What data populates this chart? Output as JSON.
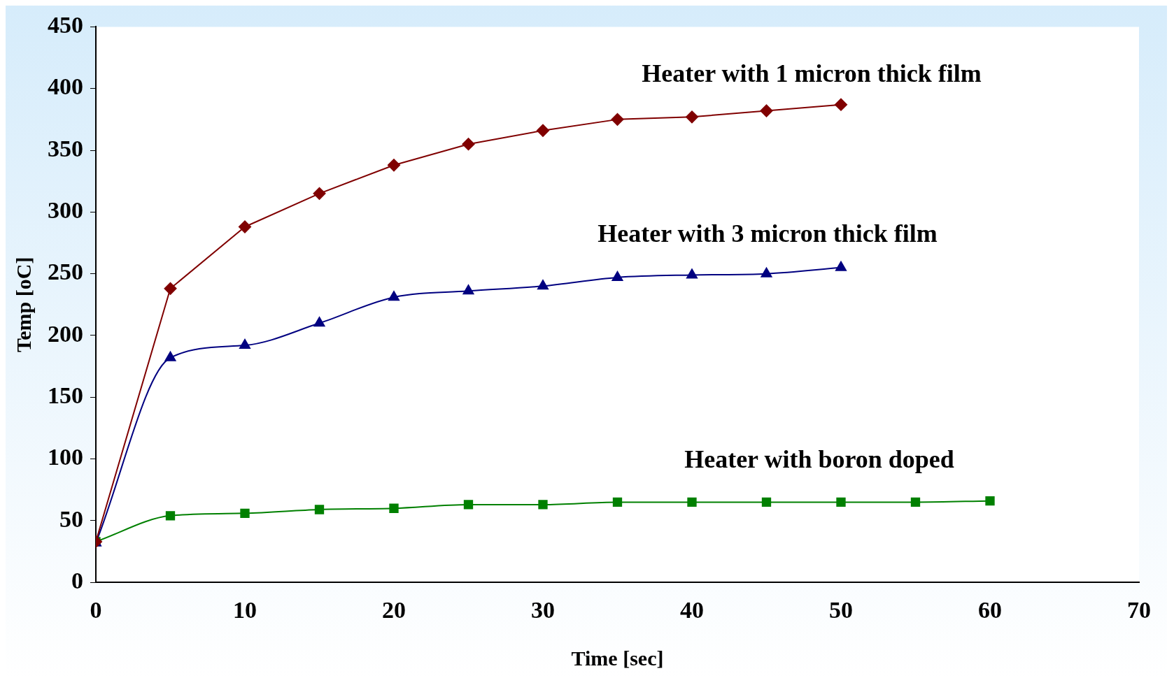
{
  "chart_data": {
    "type": "line",
    "xlabel": "Time [sec]",
    "ylabel": "Temp [oC]",
    "xlim": [
      0,
      70
    ],
    "xticks": [
      0,
      10,
      20,
      30,
      40,
      50,
      60,
      70
    ],
    "ylim": [
      0,
      450
    ],
    "yticks": [
      0,
      50,
      100,
      150,
      200,
      250,
      300,
      350,
      400,
      450
    ],
    "grid": false,
    "legend": false,
    "series": [
      {
        "name": "Heater with 1 micron thick film",
        "color": "#800000",
        "marker": "diamond",
        "x": [
          0,
          5,
          10,
          15,
          20,
          25,
          30,
          35,
          40,
          45,
          50
        ],
        "values": [
          33,
          238,
          288,
          315,
          338,
          355,
          366,
          375,
          377,
          382,
          387
        ]
      },
      {
        "name": "Heater with 3 micron thick film",
        "color": "#000080",
        "marker": "triangle",
        "x": [
          0,
          5,
          10,
          15,
          20,
          25,
          30,
          35,
          40,
          45,
          50
        ],
        "values": [
          32,
          182,
          192,
          210,
          231,
          236,
          240,
          247,
          249,
          250,
          255
        ]
      },
      {
        "name": "Heater with boron doped",
        "color": "#008000",
        "marker": "square",
        "x": [
          0,
          5,
          10,
          15,
          20,
          25,
          30,
          35,
          40,
          45,
          50,
          55,
          60
        ],
        "values": [
          33,
          54,
          56,
          59,
          60,
          63,
          63,
          65,
          65,
          65,
          65,
          65,
          66
        ]
      }
    ]
  }
}
